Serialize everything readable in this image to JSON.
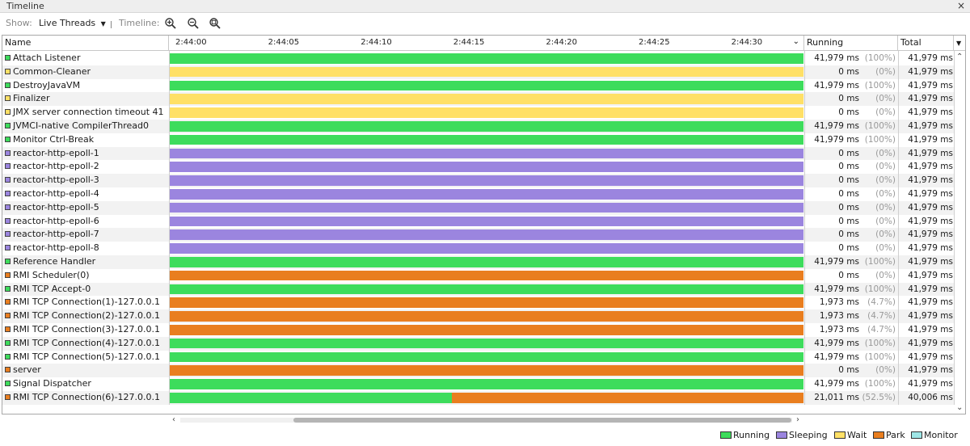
{
  "panel": {
    "title": "Timeline",
    "close": "×"
  },
  "toolbar": {
    "show_label": "Show:",
    "show_value": "Live Threads",
    "timeline_label": "Timeline:",
    "zoom_in": "zoom-in-icon",
    "zoom_out": "zoom-out-icon",
    "zoom_fit": "zoom-fit-icon"
  },
  "columns": {
    "name": "Name",
    "running": "Running",
    "total": "Total",
    "ticks": [
      "2:44:00",
      "2:44:05",
      "2:44:10",
      "2:44:15",
      "2:44:20",
      "2:44:25",
      "2:44:30"
    ]
  },
  "colors": {
    "Running": "#3ddc5c",
    "Sleeping": "#9b85df",
    "Wait": "#ffe066",
    "Park": "#e97e1f",
    "Monitor": "#9ee6e6"
  },
  "threads": [
    {
      "name": "Attach Listener",
      "state": "Running",
      "segments": [
        {
          "state": "Running",
          "fraction": 1
        }
      ],
      "running": "41,979 ms",
      "pct": "(100%)",
      "total": "41,979 ms"
    },
    {
      "name": "Common-Cleaner",
      "state": "Wait",
      "segments": [
        {
          "state": "Wait",
          "fraction": 1
        }
      ],
      "running": "0 ms",
      "pct": "(0%)",
      "total": "41,979 ms"
    },
    {
      "name": "DestroyJavaVM",
      "state": "Running",
      "segments": [
        {
          "state": "Running",
          "fraction": 1
        }
      ],
      "running": "41,979 ms",
      "pct": "(100%)",
      "total": "41,979 ms"
    },
    {
      "name": "Finalizer",
      "state": "Wait",
      "segments": [
        {
          "state": "Wait",
          "fraction": 1
        }
      ],
      "running": "0 ms",
      "pct": "(0%)",
      "total": "41,979 ms"
    },
    {
      "name": "JMX server connection timeout 41",
      "state": "Wait",
      "segments": [
        {
          "state": "Wait",
          "fraction": 1
        }
      ],
      "running": "0 ms",
      "pct": "(0%)",
      "total": "41,979 ms"
    },
    {
      "name": "JVMCI-native CompilerThread0",
      "state": "Running",
      "segments": [
        {
          "state": "Running",
          "fraction": 1
        }
      ],
      "running": "41,979 ms",
      "pct": "(100%)",
      "total": "41,979 ms"
    },
    {
      "name": "Monitor Ctrl-Break",
      "state": "Running",
      "segments": [
        {
          "state": "Running",
          "fraction": 1
        }
      ],
      "running": "41,979 ms",
      "pct": "(100%)",
      "total": "41,979 ms"
    },
    {
      "name": "reactor-http-epoll-1",
      "state": "Sleeping",
      "segments": [
        {
          "state": "Sleeping",
          "fraction": 1
        }
      ],
      "running": "0 ms",
      "pct": "(0%)",
      "total": "41,979 ms"
    },
    {
      "name": "reactor-http-epoll-2",
      "state": "Sleeping",
      "segments": [
        {
          "state": "Sleeping",
          "fraction": 1
        }
      ],
      "running": "0 ms",
      "pct": "(0%)",
      "total": "41,979 ms"
    },
    {
      "name": "reactor-http-epoll-3",
      "state": "Sleeping",
      "segments": [
        {
          "state": "Sleeping",
          "fraction": 1
        }
      ],
      "running": "0 ms",
      "pct": "(0%)",
      "total": "41,979 ms"
    },
    {
      "name": "reactor-http-epoll-4",
      "state": "Sleeping",
      "segments": [
        {
          "state": "Sleeping",
          "fraction": 1
        }
      ],
      "running": "0 ms",
      "pct": "(0%)",
      "total": "41,979 ms"
    },
    {
      "name": "reactor-http-epoll-5",
      "state": "Sleeping",
      "segments": [
        {
          "state": "Sleeping",
          "fraction": 1
        }
      ],
      "running": "0 ms",
      "pct": "(0%)",
      "total": "41,979 ms"
    },
    {
      "name": "reactor-http-epoll-6",
      "state": "Sleeping",
      "segments": [
        {
          "state": "Sleeping",
          "fraction": 1
        }
      ],
      "running": "0 ms",
      "pct": "(0%)",
      "total": "41,979 ms"
    },
    {
      "name": "reactor-http-epoll-7",
      "state": "Sleeping",
      "segments": [
        {
          "state": "Sleeping",
          "fraction": 1
        }
      ],
      "running": "0 ms",
      "pct": "(0%)",
      "total": "41,979 ms"
    },
    {
      "name": "reactor-http-epoll-8",
      "state": "Sleeping",
      "segments": [
        {
          "state": "Sleeping",
          "fraction": 1
        }
      ],
      "running": "0 ms",
      "pct": "(0%)",
      "total": "41,979 ms"
    },
    {
      "name": "Reference Handler",
      "state": "Running",
      "segments": [
        {
          "state": "Running",
          "fraction": 1
        }
      ],
      "running": "41,979 ms",
      "pct": "(100%)",
      "total": "41,979 ms"
    },
    {
      "name": "RMI Scheduler(0)",
      "state": "Park",
      "segments": [
        {
          "state": "Park",
          "fraction": 1
        }
      ],
      "running": "0 ms",
      "pct": "(0%)",
      "total": "41,979 ms"
    },
    {
      "name": "RMI TCP Accept-0",
      "state": "Running",
      "segments": [
        {
          "state": "Running",
          "fraction": 1
        }
      ],
      "running": "41,979 ms",
      "pct": "(100%)",
      "total": "41,979 ms"
    },
    {
      "name": "RMI TCP Connection(1)-127.0.0.1",
      "state": "Park",
      "segments": [
        {
          "state": "Park",
          "fraction": 1
        }
      ],
      "running": "1,973 ms",
      "pct": "(4.7%)",
      "total": "41,979 ms"
    },
    {
      "name": "RMI TCP Connection(2)-127.0.0.1",
      "state": "Park",
      "segments": [
        {
          "state": "Park",
          "fraction": 1
        }
      ],
      "running": "1,973 ms",
      "pct": "(4.7%)",
      "total": "41,979 ms"
    },
    {
      "name": "RMI TCP Connection(3)-127.0.0.1",
      "state": "Park",
      "segments": [
        {
          "state": "Park",
          "fraction": 1
        }
      ],
      "running": "1,973 ms",
      "pct": "(4.7%)",
      "total": "41,979 ms"
    },
    {
      "name": "RMI TCP Connection(4)-127.0.0.1",
      "state": "Running",
      "segments": [
        {
          "state": "Running",
          "fraction": 1
        }
      ],
      "running": "41,979 ms",
      "pct": "(100%)",
      "total": "41,979 ms"
    },
    {
      "name": "RMI TCP Connection(5)-127.0.0.1",
      "state": "Running",
      "segments": [
        {
          "state": "Running",
          "fraction": 1
        }
      ],
      "running": "41,979 ms",
      "pct": "(100%)",
      "total": "41,979 ms"
    },
    {
      "name": "server",
      "state": "Park",
      "segments": [
        {
          "state": "Park",
          "fraction": 1
        }
      ],
      "running": "0 ms",
      "pct": "(0%)",
      "total": "41,979 ms"
    },
    {
      "name": "Signal Dispatcher",
      "state": "Running",
      "segments": [
        {
          "state": "Running",
          "fraction": 1
        }
      ],
      "running": "41,979 ms",
      "pct": "(100%)",
      "total": "41,979 ms"
    },
    {
      "name": "RMI TCP Connection(6)-127.0.0.1",
      "state": "Park",
      "segments": [
        {
          "state": "Running",
          "fraction": 0.446
        },
        {
          "state": "Park",
          "fraction": 0.554
        }
      ],
      "running": "21,011 ms",
      "pct": "(52.5%)",
      "total": "40,006 ms"
    }
  ],
  "legend": [
    "Running",
    "Sleeping",
    "Wait",
    "Park",
    "Monitor"
  ]
}
